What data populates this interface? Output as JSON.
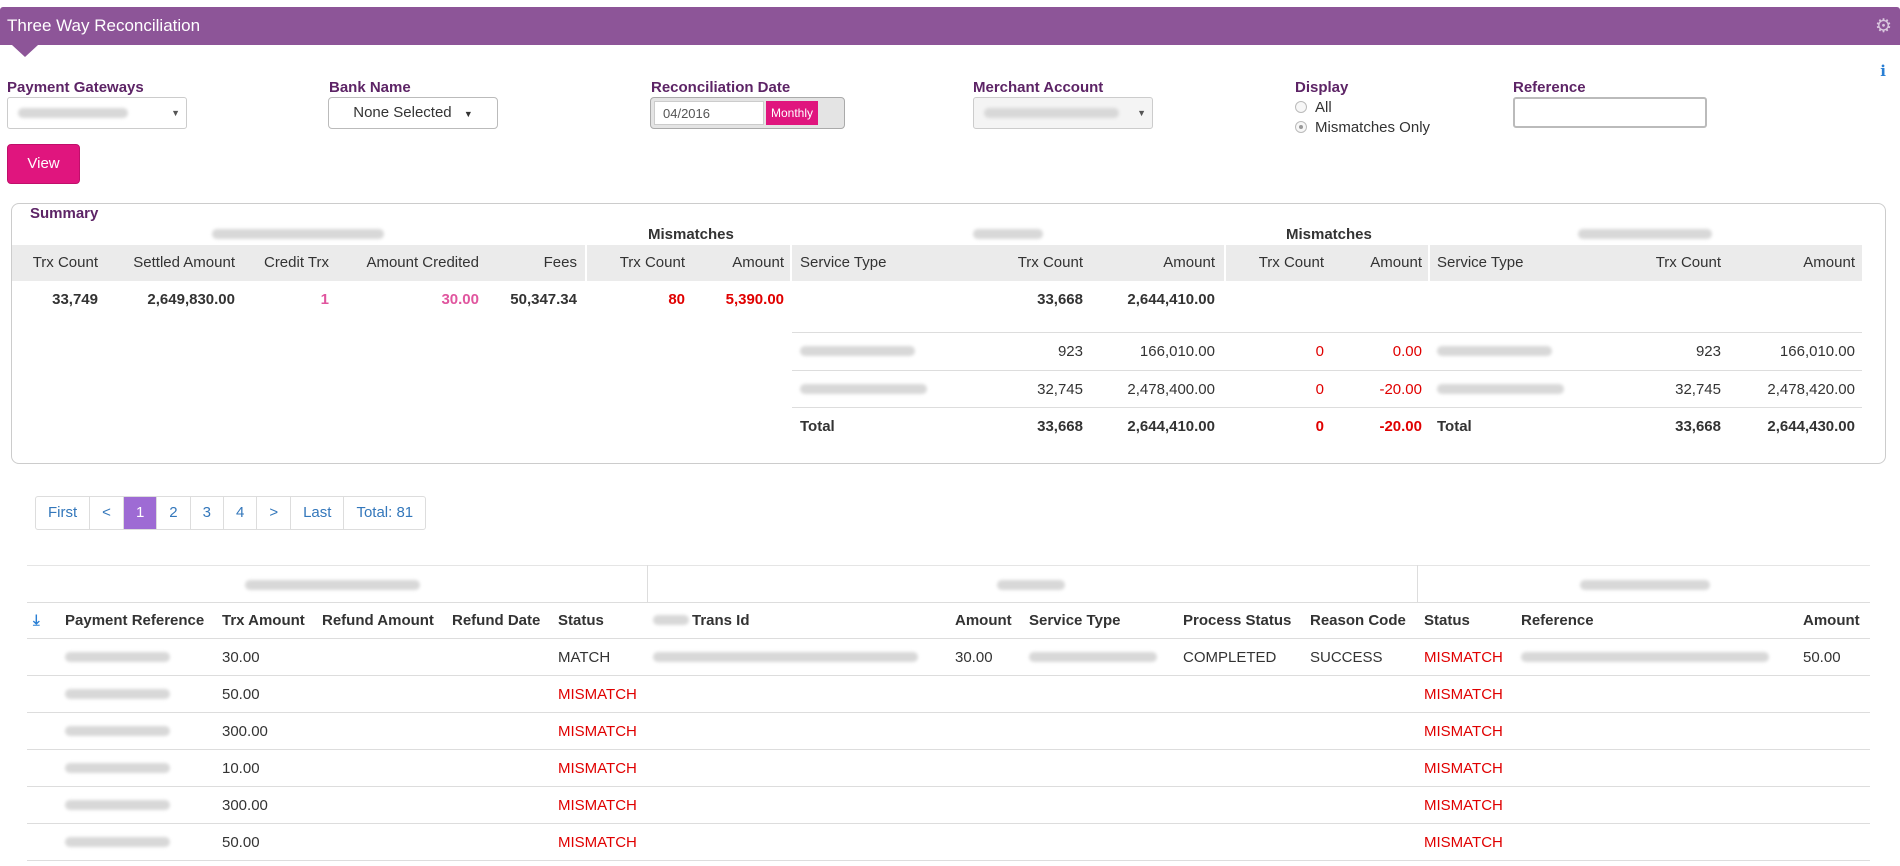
{
  "app": {
    "title": "Three Way Reconciliation",
    "gear_icon": "gear-icon",
    "info_icon": "info-icon"
  },
  "filters": {
    "payment_gateways_label": "Payment Gateways",
    "bank_name_label": "Bank Name",
    "bank_name_value": "None Selected",
    "reconciliation_date_label": "Reconciliation Date",
    "reconciliation_date_value": "04/2016",
    "period_button": "Monthly",
    "merchant_account_label": "Merchant Account",
    "display_label": "Display",
    "display_options": [
      "All",
      "Mismatches Only"
    ],
    "display_selected": "Mismatches Only",
    "reference_label": "Reference",
    "reference_value": "",
    "view_button": "View"
  },
  "summary": {
    "title": "Summary",
    "group_mismatches": "Mismatches",
    "gateway_headers": [
      "Trx Count",
      "Settled Amount",
      "Credit Trx",
      "Amount Credited",
      "Fees"
    ],
    "mismatch_headers": [
      "Trx Count",
      "Amount"
    ],
    "service_headers": [
      "Service Type",
      "Trx Count",
      "Amount"
    ],
    "gateway_values": [
      "33,749",
      "2,649,830.00",
      "1",
      "30.00",
      "50,347.34"
    ],
    "gateway_mismatch_values": [
      "80",
      "5,390.00"
    ],
    "service_a_total_top": [
      "33,668",
      "2,644,410.00"
    ],
    "service_rows": [
      {
        "a_trx": "923",
        "a_amount": "166,010.00",
        "m_trx": "0",
        "m_amount": "0.00",
        "b_trx": "923",
        "b_amount": "166,010.00"
      },
      {
        "a_trx": "32,745",
        "a_amount": "2,478,400.00",
        "m_trx": "0",
        "m_amount": "-20.00",
        "b_trx": "32,745",
        "b_amount": "2,478,420.00"
      }
    ],
    "total_row": {
      "label": "Total",
      "a_trx": "33,668",
      "a_amount": "2,644,410.00",
      "m_trx": "0",
      "m_amount": "-20.00",
      "b_label": "Total",
      "b_trx": "33,668",
      "b_amount": "2,644,430.00"
    }
  },
  "pagination": {
    "items": [
      "First",
      "<",
      "1",
      "2",
      "3",
      "4",
      ">",
      "Last",
      "Total: 81"
    ],
    "active": "1"
  },
  "detail": {
    "download_icon": "download-icon",
    "headers": {
      "payment_reference": "Payment Reference",
      "trx_amount": "Trx Amount",
      "refund_amount": "Refund Amount",
      "refund_date": "Refund Date",
      "status": "Status",
      "trans_id": "Trans Id",
      "amount": "Amount",
      "service_type": "Service Type",
      "process_status": "Process Status",
      "reason_code": "Reason Code",
      "status2": "Status",
      "reference": "Reference",
      "amount2": "Amount"
    },
    "rows": [
      {
        "trx_amount": "30.00",
        "status": "MATCH",
        "amount": "30.00",
        "process_status": "COMPLETED",
        "reason_code": "SUCCESS",
        "status2": "MISMATCH",
        "amount2": "50.00",
        "has_middle": true
      },
      {
        "trx_amount": "50.00",
        "status": "MISMATCH",
        "amount": "",
        "process_status": "",
        "reason_code": "",
        "status2": "MISMATCH",
        "amount2": "",
        "has_middle": false
      },
      {
        "trx_amount": "300.00",
        "status": "MISMATCH",
        "amount": "",
        "process_status": "",
        "reason_code": "",
        "status2": "MISMATCH",
        "amount2": "",
        "has_middle": false
      },
      {
        "trx_amount": "10.00",
        "status": "MISMATCH",
        "amount": "",
        "process_status": "",
        "reason_code": "",
        "status2": "MISMATCH",
        "amount2": "",
        "has_middle": false
      },
      {
        "trx_amount": "300.00",
        "status": "MISMATCH",
        "amount": "",
        "process_status": "",
        "reason_code": "",
        "status2": "MISMATCH",
        "amount2": "",
        "has_middle": false
      },
      {
        "trx_amount": "50.00",
        "status": "MISMATCH",
        "amount": "",
        "process_status": "",
        "reason_code": "",
        "status2": "MISMATCH",
        "amount2": "",
        "has_middle": false
      }
    ]
  }
}
